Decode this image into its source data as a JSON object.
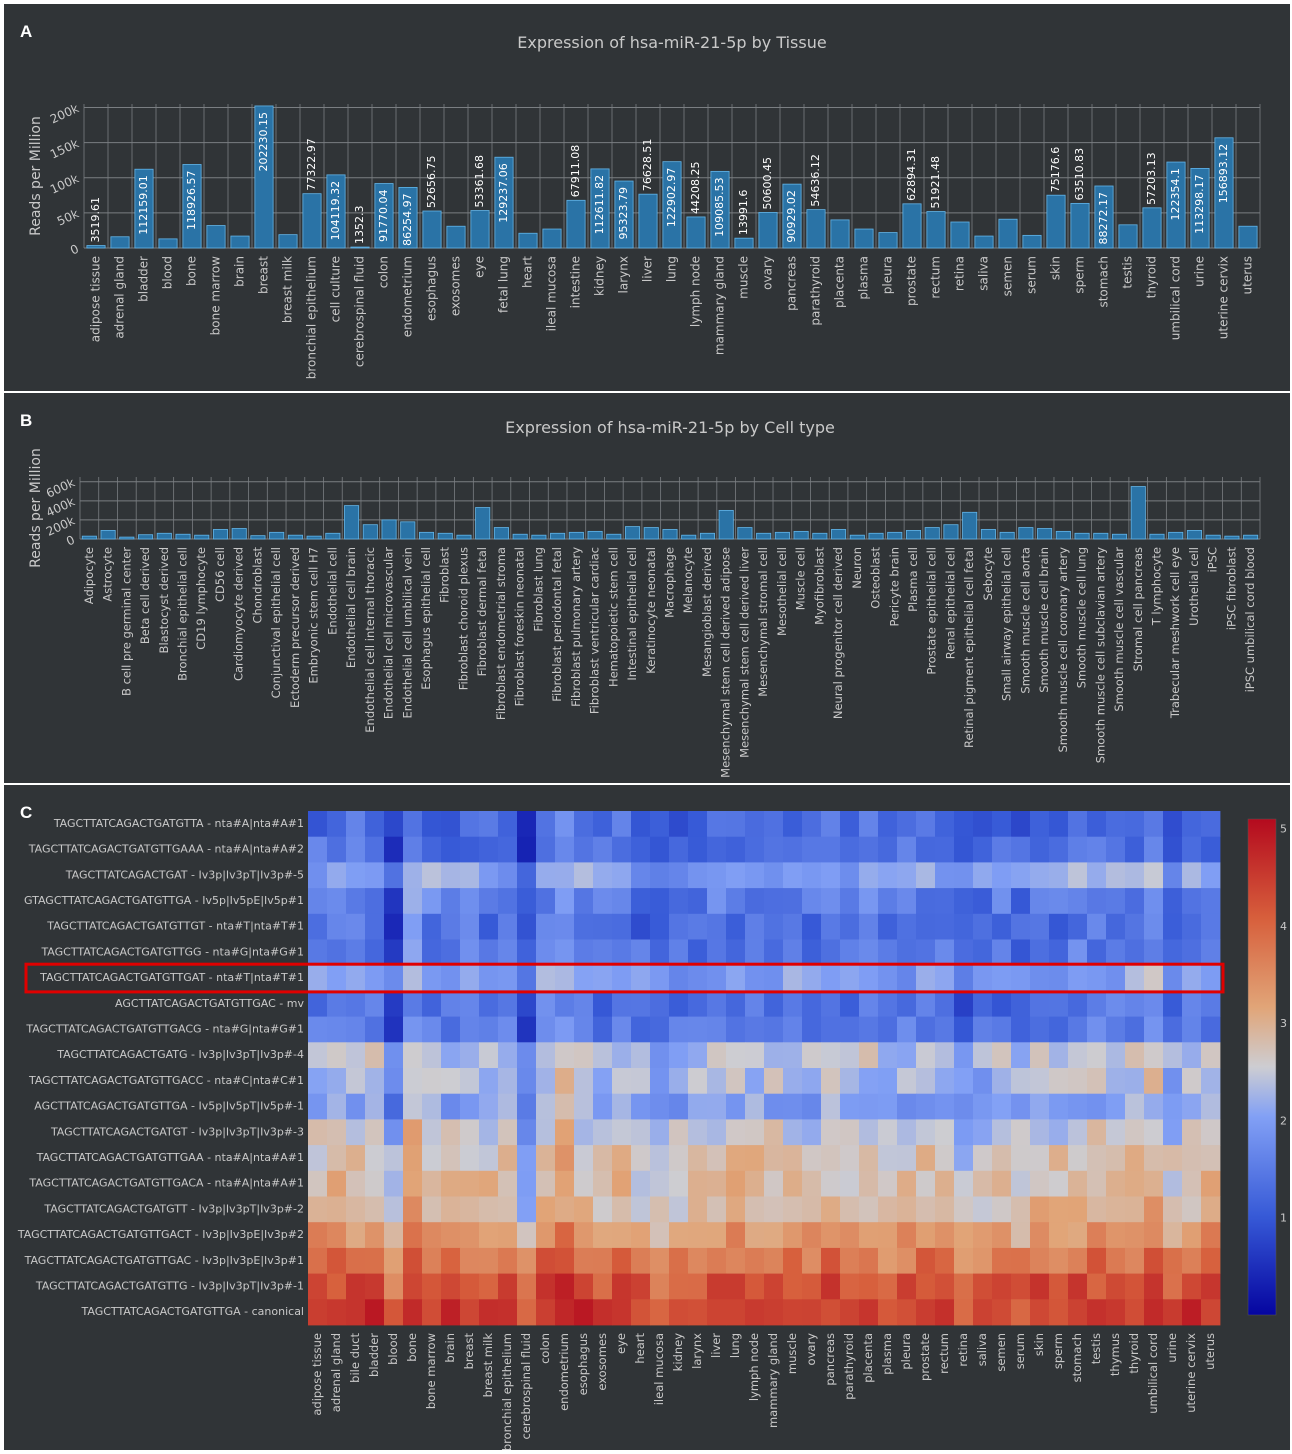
{
  "panels": {
    "a": {
      "label": "A"
    },
    "b": {
      "label": "B"
    },
    "c": {
      "label": "C"
    }
  },
  "colors": {
    "background": "#303437",
    "bar_fill": "#2a73a6",
    "bar_stroke": "#63b5e8",
    "grid": "#7a7e82",
    "text": "#c9c9c9",
    "highlight": "#e00000"
  },
  "chart_data": [
    {
      "type": "bar",
      "title": "Expression of hsa-miR-21-5p by Tissue",
      "ylabel": "Reads per Million",
      "ylim": [
        0,
        205000
      ],
      "yticks": [
        0,
        50000,
        100000,
        150000,
        200000
      ],
      "ytick_labels": [
        "0",
        "50k",
        "100k",
        "150k",
        "200k"
      ],
      "grid": true,
      "categories": [
        "adipose tissue",
        "adrenal gland",
        "bladder",
        "blood",
        "bone",
        "bone marrow",
        "brain",
        "breast",
        "breast milk",
        "bronchial epithelium",
        "cell culture",
        "cerebrospinal fluid",
        "colon",
        "endometrium",
        "esophagus",
        "exosomes",
        "eye",
        "fetal lung",
        "heart",
        "ileal mucosa",
        "intestine",
        "kidney",
        "larynx",
        "liver",
        "lung",
        "lymph node",
        "mammary gland",
        "muscle",
        "ovary",
        "pancreas",
        "parathyroid",
        "placenta",
        "plasma",
        "pleura",
        "prostate",
        "rectum",
        "retina",
        "saliva",
        "semen",
        "serum",
        "skin",
        "sperm",
        "stomach",
        "testis",
        "thyroid",
        "umbilical cord",
        "urine",
        "uterine cervix",
        "uterus"
      ],
      "values": [
        3519.61,
        16000,
        112159.01,
        13000,
        118926.57,
        32000,
        17000,
        202230.15,
        19000,
        77322.97,
        104119.32,
        1352.3,
        91770.04,
        86254.97,
        52656.75,
        31000,
        53361.68,
        129237.06,
        21000,
        27000,
        67911.08,
        112611.82,
        95323.79,
        76628.51,
        122902.97,
        44208.25,
        109085.53,
        13991.6,
        50600.45,
        90929.02,
        54636.12,
        40000,
        27000,
        22000,
        62894.31,
        51921.48,
        37000,
        17000,
        41000,
        18000,
        75176.6,
        63510.83,
        88272.17,
        33000,
        57203.13,
        122354.1,
        113298.17,
        156893.12,
        31000
      ],
      "data_labels": [
        "3519.61",
        "",
        "112159.01",
        "",
        "118926.57",
        "",
        "",
        "202230.15",
        "",
        "77322.97",
        "104119.32",
        "1352.3",
        "91770.04",
        "86254.97",
        "52656.75",
        "",
        "53361.68",
        "129237.06",
        "",
        "",
        "67911.08",
        "112611.82",
        "95323.79",
        "76628.51",
        "122902.97",
        "44208.25",
        "109085.53",
        "13991.6",
        "50600.45",
        "90929.02",
        "54636.12",
        "",
        "",
        "",
        "62894.31",
        "51921.48",
        "",
        "",
        "",
        "",
        "75176.6",
        "63510.83",
        "88272.17",
        "",
        "57203.13",
        "122354.1",
        "113298.17",
        "156893.12",
        ""
      ]
    },
    {
      "type": "bar",
      "title": "Expression of hsa-miR-21-5p by Cell type",
      "ylabel": "Reads per Million",
      "ylim": [
        0,
        650000
      ],
      "yticks": [
        0,
        200000,
        400000,
        600000
      ],
      "ytick_labels": [
        "0",
        "200k",
        "400k",
        "600k"
      ],
      "grid": true,
      "categories": [
        "Adipocyte",
        "Astrocyte",
        "B cell pre germinal center",
        "Beta cell derived",
        "Blastocyst derived",
        "Bronchial epithelial cell",
        "CD19 lymphocyte",
        "CD56 cell",
        "Cardiomyocyte derived",
        "Chondroblast",
        "Conjunctival epithelial cell",
        "Ectoderm precursor derived",
        "Embryonic stem cell H7",
        "Endothelial cell",
        "Endothelial cell brain",
        "Endothelial cell internal thoracic",
        "Endothelial cell microvascular",
        "Endothelial cell umbilical vein",
        "Esophagus epithelial cell",
        "Fibroblast",
        "Fibroblast choroid plexus",
        "Fibroblast dermal fetal",
        "Fibroblast endometrial stroma",
        "Fibroblast foreskin neonatal",
        "Fibroblast lung",
        "Fibroblast periodontal fetal",
        "Fibroblast pulmonary artery",
        "Fibroblast ventricular cardiac",
        "Hematopoietic stem cell",
        "Intestinal epithelial cell",
        "Keratinocyte neonatal",
        "Macrophage",
        "Melanocyte",
        "Mesangioblast derived",
        "Mesenchymal stem cell derived adipose",
        "Mesenchymal stem cell derived liver",
        "Mesenchymal stromal cell",
        "Mesothelial cell",
        "Muscle cell",
        "Myofibroblast",
        "Neural progenitor cell derived",
        "Neuron",
        "Osteoblast",
        "Pericyte brain",
        "Plasma cell",
        "Prostate epithelial cell",
        "Renal epithelial cell",
        "Retinal pigment epithelial cell fetal",
        "Sebocyte",
        "Small airway epithelial cell",
        "Smooth muscle cell aorta",
        "Smooth muscle cell brain",
        "Smooth muscle cell coronary artery",
        "Smooth muscle cell lung",
        "Smooth muscle cell subclavian artery",
        "Smooth muscle cell vascular",
        "Stromal cell pancreas",
        "T lymphocyte",
        "Trabecular meshwork cell eye",
        "Urothelial cell",
        "iPSC",
        "iPSC fibroblast",
        "iPSC umbilical cord blood"
      ],
      "values": [
        30000,
        90000,
        20000,
        45000,
        60000,
        50000,
        40000,
        100000,
        110000,
        35000,
        70000,
        40000,
        30000,
        60000,
        350000,
        150000,
        200000,
        180000,
        70000,
        60000,
        40000,
        330000,
        120000,
        50000,
        40000,
        60000,
        70000,
        80000,
        50000,
        130000,
        120000,
        100000,
        40000,
        60000,
        300000,
        120000,
        60000,
        70000,
        80000,
        60000,
        100000,
        40000,
        60000,
        70000,
        90000,
        120000,
        150000,
        280000,
        100000,
        70000,
        120000,
        110000,
        80000,
        60000,
        60000,
        50000,
        550000,
        50000,
        70000,
        90000,
        40000,
        30000,
        40000
      ],
      "data_labels": []
    },
    {
      "type": "heatmap",
      "colorbar_ticks": [
        1,
        2,
        3,
        4,
        5
      ],
      "colorbar_range": [
        0,
        5.1
      ],
      "colorscale": "coolwarm",
      "highlighted_row": 6,
      "rows": [
        "TAGCTTATCAGACTGATGTTA - nta#A|nta#A#1",
        "TAGCTTATCAGACTGATGTTGAAA - nta#A|nta#A#2",
        "TAGCTTATCAGACTGAT - Iv3p|Iv3pT|Iv3p#-5",
        "GTAGCTTATCAGACTGATGTTGA - Iv5p|Iv5pE|Iv5p#1",
        "TAGCTTATCAGACTGATGTTGT - nta#T|nta#T#1",
        "TAGCTTATCAGACTGATGTTGG - nta#G|nta#G#1",
        "TAGCTTATCAGACTGATGTTGAT - nta#T|nta#T#1",
        "AGCTTATCAGACTGATGTTGAC - mv",
        "TAGCTTATCAGACTGATGTTGACG - nta#G|nta#G#1",
        "TAGCTTATCAGACTGATG - Iv3p|Iv3pT|Iv3p#-4",
        "TAGCTTATCAGACTGATGTTGACC - nta#C|nta#C#1",
        "AGCTTATCAGACTGATGTTGA - Iv5p|Iv5pT|Iv5p#-1",
        "TAGCTTATCAGACTGATGT - Iv3p|Iv3pT|Iv3p#-3",
        "TAGCTTATCAGACTGATGTTGAA - nta#A|nta#A#1",
        "TAGCTTATCAGACTGATGTTGACA - nta#A|nta#A#1",
        "TAGCTTATCAGACTGATGTT - Iv3p|Iv3pT|Iv3p#-2",
        "TAGCTTATCAGACTGATGTTGACT - Iv3p|Iv3pE|Iv3p#2",
        "TAGCTTATCAGACTGATGTTGAC - Iv3p|Iv3pE|Iv3p#1",
        "TAGCTTATCAGACTGATGTTG - Iv3p|Iv3pT|Iv3p#-1",
        "TAGCTTATCAGACTGATGTTGA - canonical"
      ],
      "columns": [
        "adipose tissue",
        "adrenal gland",
        "bile duct",
        "bladder",
        "blood",
        "bone",
        "bone marrow",
        "brain",
        "breast",
        "breast milk",
        "bronchial epithelium",
        "cerebrospinal fluid",
        "colon",
        "endometrium",
        "esophagus",
        "exosomes",
        "eye",
        "heart",
        "ileal mucosa",
        "kidney",
        "larynx",
        "liver",
        "lung",
        "lymph node",
        "mammary gland",
        "muscle",
        "ovary",
        "pancreas",
        "parathyroid",
        "placenta",
        "plasma",
        "pleura",
        "prostate",
        "rectum",
        "retina",
        "saliva",
        "semen",
        "serum",
        "skin",
        "sperm",
        "stomach",
        "testis",
        "thymus",
        "thyroid",
        "umbilical cord",
        "urine",
        "uterine cervix",
        "uterus"
      ],
      "row_means": [
        1.2,
        1.3,
        2.0,
        1.5,
        1.3,
        1.4,
        2.0,
        1.3,
        1.5,
        2.4,
        2.3,
        2.0,
        2.5,
        2.7,
        2.8,
        2.9,
        3.3,
        3.8,
        4.2,
        4.5
      ],
      "column_offsets": [
        0.1,
        0.2,
        0.1,
        0.1,
        -0.6,
        0.5,
        0.1,
        0.0,
        0.1,
        0.0,
        0.1,
        -0.6,
        0.2,
        0.5,
        0.1,
        0.0,
        0.1,
        -0.1,
        -0.3,
        -0.1,
        0.0,
        0.1,
        0.1,
        0.1,
        0.1,
        0.0,
        0.0,
        0.1,
        0.0,
        0.1,
        -0.2,
        0.0,
        0.1,
        0.0,
        -0.3,
        -0.2,
        0.0,
        -0.2,
        0.1,
        0.0,
        0.1,
        0.1,
        0.1,
        0.1,
        0.4,
        -0.2,
        0.1,
        0.1
      ]
    }
  ]
}
